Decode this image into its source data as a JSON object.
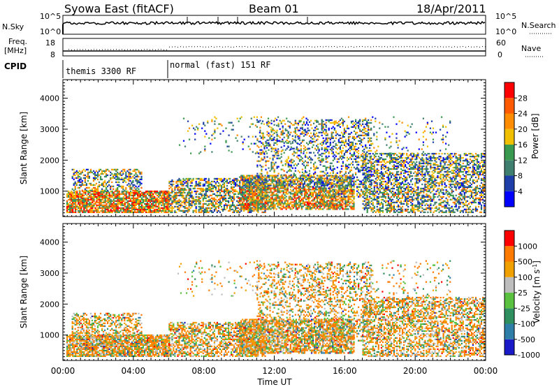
{
  "header": {
    "station": "Syowa East (fitACF)",
    "beam": "Beam 01",
    "date": "18/Apr/2011"
  },
  "labels": {
    "nsky": "N.Sky",
    "nsearch": "N.Search",
    "freq1": "Freq.",
    "freq2": "[MHz]",
    "nave": "Nave",
    "cpid": "CPID",
    "cpid_mode1": "themis 3300 RF",
    "cpid_mode2": "normal (fast) 151 RF",
    "y_axis": "Slant Range [km]",
    "x_axis": "Time UT",
    "power_label": "Power [dB]",
    "velocity_label": "Velocity [m s",
    "velocity_exp": "-1",
    "velocity_close": "]"
  },
  "chart_data": {
    "type": "heatmap",
    "x_axis": {
      "label": "Time UT",
      "range_hours": [
        0,
        24
      ],
      "ticks": [
        "00:00",
        "04:00",
        "08:00",
        "12:00",
        "16:00",
        "20:00",
        "00:00"
      ]
    },
    "y_axis": {
      "label": "Slant Range [km]",
      "range_km": [
        180,
        4600
      ],
      "ticks": [
        "1000",
        "2000",
        "3000",
        "4000"
      ]
    },
    "summary_panels": {
      "nsky": {
        "left_ticks": [
          "10^5",
          "10^0"
        ],
        "right_ticks": [
          "10^5",
          "10^0"
        ]
      },
      "freq": {
        "left_ticks": [
          "18",
          "8"
        ],
        "right_ticks": [
          "60",
          "0"
        ]
      }
    },
    "power_scale": {
      "label": "Power [dB]",
      "ticks": [
        "28",
        "24",
        "20",
        "16",
        "12",
        "8",
        "4"
      ],
      "colors": [
        "#0000ff",
        "#1f3fa8",
        "#3f7f6f",
        "#3a9a50",
        "#f0c000",
        "#ff8c00",
        "#ff5a00",
        "#ff0000"
      ]
    },
    "velocity_scale": {
      "label": "Velocity [m s-1]",
      "ticks": [
        "1000",
        "500",
        "100",
        "25",
        "-25",
        "-100",
        "-500",
        "-1000"
      ],
      "colors": [
        "#1a1ac8",
        "#2e7ea8",
        "#2f8f5e",
        "#59c040",
        "#bdbdbd",
        "#f0a000",
        "#ff7a00",
        "#ff0000"
      ]
    },
    "cpid_segments": [
      {
        "name": "themis 3300 RF",
        "start_hour": 0,
        "end_hour": 6.1
      },
      {
        "name": "normal (fast) 151 RF",
        "start_hour": 6.1,
        "end_hour": 24
      }
    ]
  }
}
